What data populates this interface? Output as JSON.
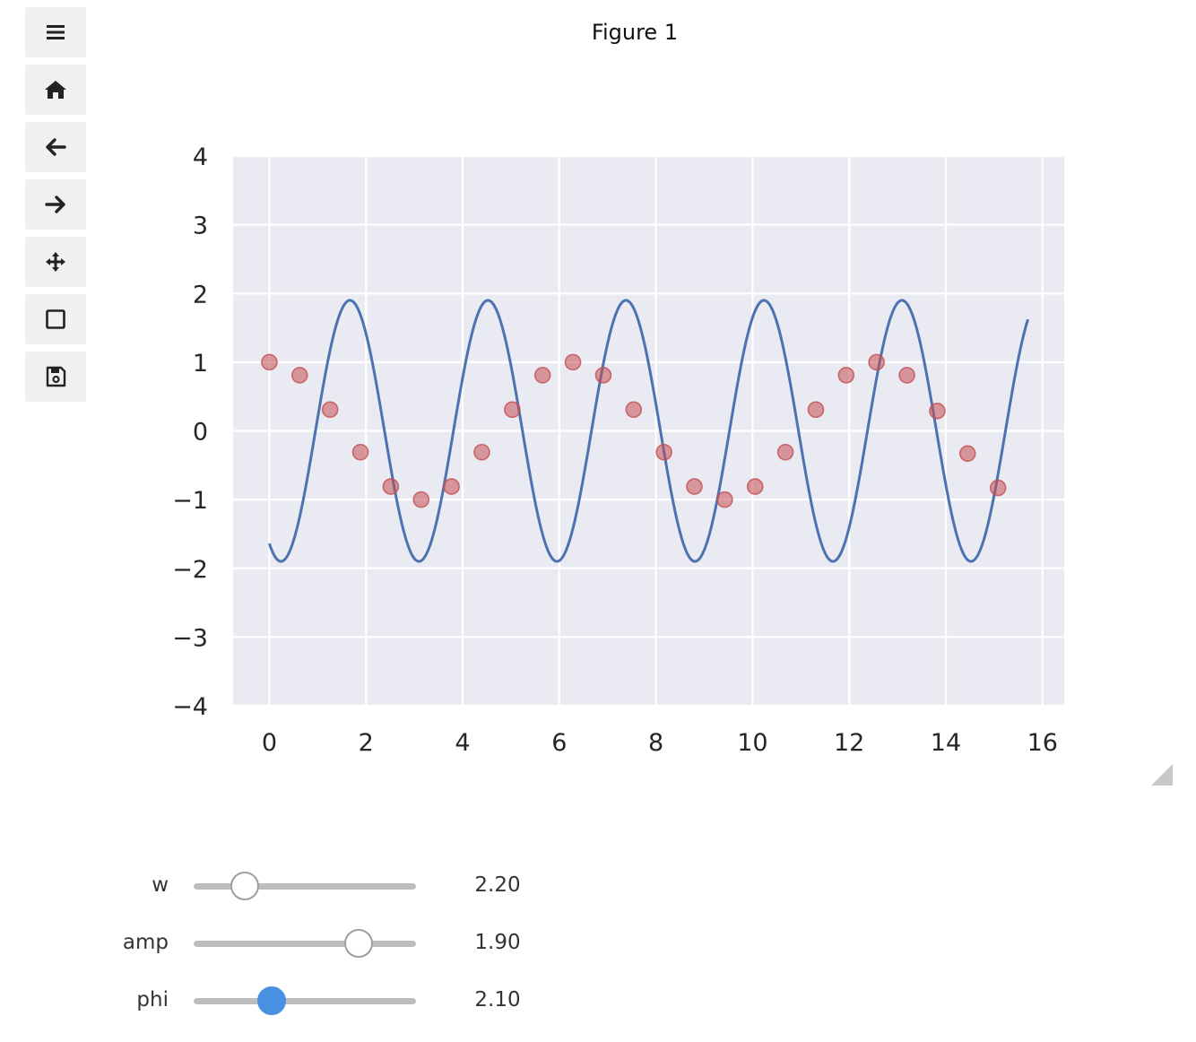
{
  "figure": {
    "title": "Figure 1"
  },
  "toolbar": {
    "buttons": [
      {
        "name": "menu-button",
        "icon": "menu-icon"
      },
      {
        "name": "home-button",
        "icon": "home-icon"
      },
      {
        "name": "back-button",
        "icon": "arrow-left-icon"
      },
      {
        "name": "forward-button",
        "icon": "arrow-right-icon"
      },
      {
        "name": "pan-button",
        "icon": "move-icon"
      },
      {
        "name": "zoom-button",
        "icon": "zoom-rect-icon"
      },
      {
        "name": "save-button",
        "icon": "save-icon"
      }
    ]
  },
  "chart_data": {
    "type": "scatter",
    "style": "seaborn darkgrid",
    "xlim": [
      -0.75,
      16.45
    ],
    "ylim": [
      -4,
      4
    ],
    "x_ticks": [
      0,
      2,
      4,
      6,
      8,
      10,
      12,
      14,
      16
    ],
    "x_tick_labels": [
      "0",
      "2",
      "4",
      "6",
      "8",
      "10",
      "12",
      "14",
      "16"
    ],
    "y_ticks": [
      4,
      3,
      2,
      1,
      0,
      -1,
      -2,
      -3,
      -4
    ],
    "y_tick_labels": [
      "4",
      "3",
      "2",
      "1",
      "0",
      "−1",
      "−2",
      "−3",
      "−4"
    ],
    "grid": true,
    "series": [
      {
        "kind": "line",
        "color": "#4c72b0",
        "function": "amp*sin(w*x - phi)",
        "x_range": [
          0,
          15.7
        ]
      },
      {
        "kind": "scatter",
        "color": "#c44e52",
        "x": [
          0,
          0.628,
          1.257,
          1.885,
          2.513,
          3.142,
          3.77,
          4.398,
          5.027,
          5.655,
          6.283,
          6.912,
          7.54,
          8.168,
          8.796,
          9.425,
          10.053,
          10.681,
          11.31,
          11.938,
          12.566,
          13.195,
          13.823,
          14.451,
          15.08
        ],
        "y": [
          1.0,
          0.81,
          0.31,
          -0.31,
          -0.81,
          -1.0,
          -0.81,
          -0.31,
          0.31,
          0.81,
          1.0,
          0.81,
          0.31,
          -0.31,
          -0.81,
          -1.0,
          -0.81,
          -0.31,
          0.31,
          0.81,
          1.0,
          0.81,
          0.29,
          -0.33,
          -0.83
        ]
      }
    ]
  },
  "sliders": [
    {
      "name": "w",
      "label": "w",
      "value": 2.2,
      "display": "2.20",
      "fraction": 0.23,
      "active": false
    },
    {
      "name": "amp",
      "label": "amp",
      "value": 1.9,
      "display": "1.90",
      "fraction": 0.74,
      "active": false
    },
    {
      "name": "phi",
      "label": "phi",
      "value": 2.1,
      "display": "2.10",
      "fraction": 0.35,
      "active": true
    }
  ]
}
